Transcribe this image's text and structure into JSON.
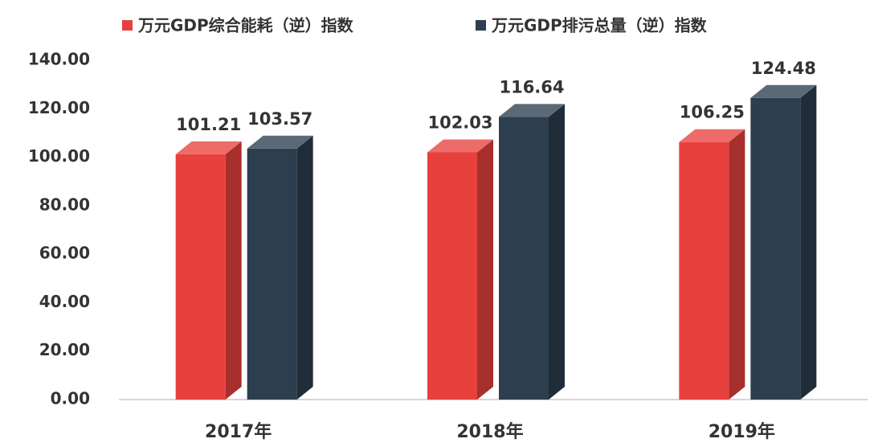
{
  "chart_data": {
    "type": "bar3d",
    "categories": [
      "2017年",
      "2018年",
      "2019年"
    ],
    "series": [
      {
        "name": "万元GDP综合能耗（逆）指数",
        "color": "#e8413d",
        "values": [
          101.21,
          102.03,
          106.25
        ]
      },
      {
        "name": "万元GDP排污总量（逆）指数",
        "color": "#2d3e4f",
        "values": [
          103.57,
          116.64,
          124.48
        ]
      }
    ],
    "ylim": [
      0,
      140
    ],
    "yticks": [
      {
        "value": 0,
        "label": "0.00"
      },
      {
        "value": 20,
        "label": "20.00"
      },
      {
        "value": 40,
        "label": "40.00"
      },
      {
        "value": 60,
        "label": "60.00"
      },
      {
        "value": 80,
        "label": "80.00"
      },
      {
        "value": 100,
        "label": "100.00"
      },
      {
        "value": 120,
        "label": "120.00"
      },
      {
        "value": 140,
        "label": "140.00"
      }
    ],
    "legend": "top",
    "grid": false
  }
}
